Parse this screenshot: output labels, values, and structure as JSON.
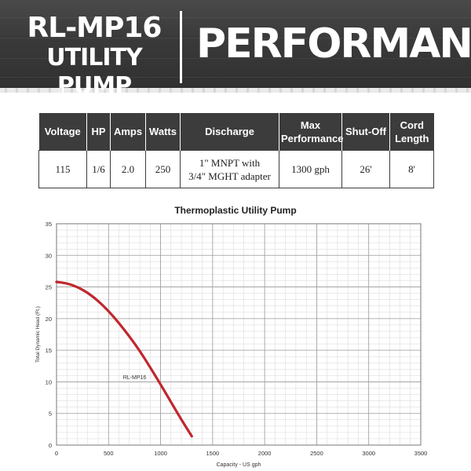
{
  "header": {
    "model": "RL-MP16",
    "product": "UTILITY PUMP",
    "section": "PERFORMANCE"
  },
  "colors": {
    "banner": "#3a3a3a",
    "table_header": "#3c3c3c",
    "curve": "#c0272d",
    "grid": "#9a9a9a"
  },
  "spec_table": {
    "headers": [
      [
        "Voltage"
      ],
      [
        "HP"
      ],
      [
        "Amps"
      ],
      [
        "Watts"
      ],
      [
        "Discharge"
      ],
      [
        "Max",
        "Performance"
      ],
      [
        "Shut-Off"
      ],
      [
        "Cord",
        "Length"
      ]
    ],
    "row": [
      [
        "115"
      ],
      [
        "1/6"
      ],
      [
        "2.0"
      ],
      [
        "250"
      ],
      [
        "1\" MNPT with",
        "3/4\" MGHT adapter"
      ],
      [
        "1300 gph"
      ],
      [
        "26'"
      ],
      [
        "8'"
      ]
    ]
  },
  "chart_data": {
    "type": "line",
    "title": "Thermoplastic Utility Pump",
    "xlabel": "Capacity - US gph",
    "ylabel": "Total Dynamic Head (Ft.)",
    "xlim": [
      0,
      3500
    ],
    "ylim": [
      0,
      35
    ],
    "xticks": [
      0,
      500,
      1000,
      1500,
      2000,
      2500,
      3000,
      3500
    ],
    "yticks": [
      0,
      5,
      10,
      15,
      20,
      25,
      30,
      35
    ],
    "grid": true,
    "series": [
      {
        "name": "RL-MP16",
        "color": "#c0272d",
        "x": [
          0,
          100,
          200,
          300,
          400,
          500,
          600,
          700,
          800,
          900,
          1000,
          1100,
          1200,
          1300
        ],
        "y": [
          25.8,
          25.6,
          25.0,
          24.1,
          22.8,
          21.2,
          19.3,
          17.2,
          14.9,
          12.3,
          9.6,
          6.8,
          4.0,
          1.4
        ]
      }
    ],
    "annotations": [
      {
        "text": "RL-MP16",
        "x": 820,
        "y": 10.7
      }
    ]
  }
}
